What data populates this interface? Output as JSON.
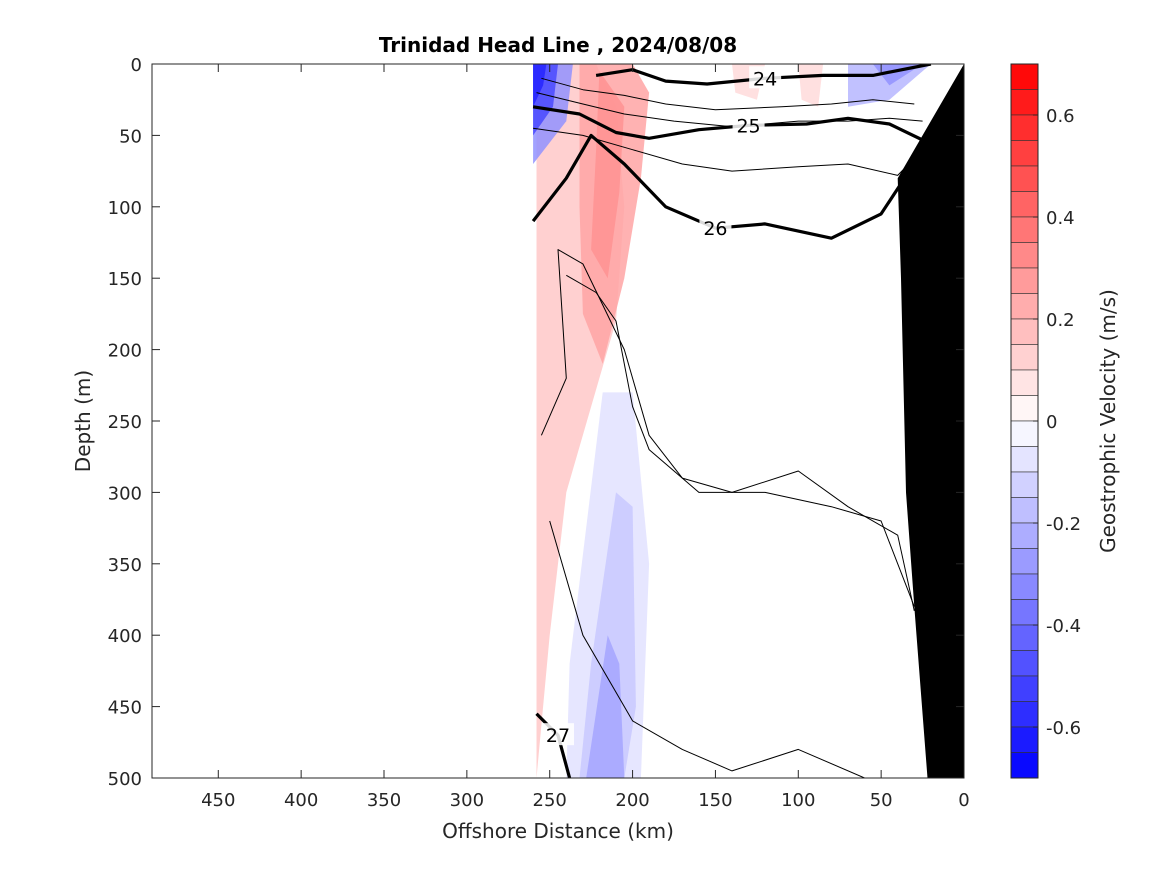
{
  "chart_data": {
    "type": "heatmap",
    "title": "Trinidad Head Line , 2024/08/08",
    "xlabel": "Offshore Distance (km)",
    "ylabel": "Depth (m)",
    "xlim": [
      490,
      0
    ],
    "ylim": [
      0,
      500
    ],
    "x_reversed": true,
    "y_reversed": true,
    "x_ticks": [
      450,
      400,
      350,
      300,
      250,
      200,
      150,
      100,
      50,
      0
    ],
    "y_ticks": [
      0,
      50,
      100,
      150,
      200,
      250,
      300,
      350,
      400,
      450,
      500
    ],
    "colorbar": {
      "label": "Geostrophic Velocity (m/s)",
      "range": [
        -0.7,
        0.7
      ],
      "step": 0.05,
      "ticks": [
        0.6,
        0.4,
        0.2,
        0,
        -0.2,
        -0.4,
        -0.6
      ],
      "positive_color": "#ff0000",
      "negative_color": "#0000ff"
    },
    "data_extent_km": 260,
    "velocity_regions": [
      {
        "v": 0.15,
        "points": [
          [
            258,
            0
          ],
          [
            222,
            0
          ],
          [
            210,
            30
          ],
          [
            205,
            100
          ],
          [
            210,
            180
          ],
          [
            225,
            240
          ],
          [
            240,
            300
          ],
          [
            250,
            400
          ],
          [
            258,
            500
          ]
        ]
      },
      {
        "v": 0.25,
        "points": [
          [
            232,
            0
          ],
          [
            200,
            0
          ],
          [
            190,
            20
          ],
          [
            195,
            80
          ],
          [
            205,
            150
          ],
          [
            218,
            210
          ],
          [
            230,
            175
          ],
          [
            232,
            100
          ]
        ]
      },
      {
        "v": 0.3,
        "points": [
          [
            220,
            5
          ],
          [
            205,
            30
          ],
          [
            208,
            90
          ],
          [
            215,
            150
          ],
          [
            225,
            130
          ],
          [
            222,
            60
          ]
        ]
      },
      {
        "v": 0.1,
        "points": [
          [
            100,
            0
          ],
          [
            85,
            0
          ],
          [
            88,
            30
          ],
          [
            98,
            25
          ]
        ]
      },
      {
        "v": 0.1,
        "points": [
          [
            140,
            0
          ],
          [
            120,
            0
          ],
          [
            125,
            25
          ],
          [
            138,
            20
          ]
        ]
      },
      {
        "v": -0.08,
        "points": [
          [
            218,
            230
          ],
          [
            200,
            230
          ],
          [
            190,
            350
          ],
          [
            195,
            500
          ],
          [
            240,
            500
          ],
          [
            238,
            420
          ]
        ]
      },
      {
        "v": -0.15,
        "points": [
          [
            210,
            300
          ],
          [
            200,
            310
          ],
          [
            198,
            450
          ],
          [
            205,
            500
          ],
          [
            232,
            500
          ],
          [
            225,
            420
          ]
        ]
      },
      {
        "v": -0.25,
        "points": [
          [
            215,
            400
          ],
          [
            208,
            420
          ],
          [
            205,
            500
          ],
          [
            228,
            500
          ]
        ]
      },
      {
        "v": -0.2,
        "points": [
          [
            70,
            0
          ],
          [
            20,
            0
          ],
          [
            45,
            25
          ],
          [
            70,
            30
          ]
        ]
      },
      {
        "v": -0.3,
        "points": [
          [
            55,
            0
          ],
          [
            25,
            0
          ],
          [
            45,
            15
          ]
        ]
      },
      {
        "v": -0.3,
        "points": [
          [
            260,
            0
          ],
          [
            236,
            0
          ],
          [
            240,
            40
          ],
          [
            260,
            70
          ]
        ]
      },
      {
        "v": -0.5,
        "points": [
          [
            260,
            0
          ],
          [
            245,
            0
          ],
          [
            248,
            30
          ],
          [
            260,
            50
          ]
        ]
      },
      {
        "v": -0.6,
        "points": [
          [
            260,
            0
          ],
          [
            252,
            0
          ],
          [
            254,
            15
          ],
          [
            260,
            30
          ]
        ]
      }
    ],
    "isopycnals": [
      {
        "label": "24",
        "major": true,
        "points": [
          [
            222,
            8
          ],
          [
            200,
            4
          ],
          [
            180,
            12
          ],
          [
            155,
            14
          ],
          [
            120,
            10
          ],
          [
            85,
            8
          ],
          [
            55,
            8
          ],
          [
            20,
            0
          ]
        ]
      },
      {
        "label": "",
        "major": false,
        "points": [
          [
            255,
            10
          ],
          [
            230,
            18
          ],
          [
            205,
            22
          ],
          [
            180,
            28
          ],
          [
            150,
            32
          ],
          [
            110,
            30
          ],
          [
            80,
            28
          ],
          [
            55,
            25
          ],
          [
            30,
            28
          ]
        ]
      },
      {
        "label": "",
        "major": false,
        "points": [
          [
            258,
            20
          ],
          [
            230,
            28
          ],
          [
            205,
            35
          ],
          [
            175,
            40
          ],
          [
            140,
            44
          ],
          [
            100,
            40
          ],
          [
            70,
            40
          ],
          [
            45,
            38
          ],
          [
            25,
            40
          ]
        ]
      },
      {
        "label": "25",
        "major": true,
        "points": [
          [
            260,
            30
          ],
          [
            232,
            35
          ],
          [
            210,
            48
          ],
          [
            190,
            52
          ],
          [
            160,
            46
          ],
          [
            130,
            43
          ],
          [
            95,
            42
          ],
          [
            70,
            38
          ],
          [
            45,
            42
          ],
          [
            20,
            56
          ]
        ]
      },
      {
        "label": "",
        "major": false,
        "points": [
          [
            260,
            45
          ],
          [
            230,
            50
          ],
          [
            200,
            60
          ],
          [
            170,
            70
          ],
          [
            140,
            75
          ],
          [
            100,
            72
          ],
          [
            70,
            70
          ],
          [
            40,
            78
          ],
          [
            25,
            60
          ]
        ]
      },
      {
        "label": "26",
        "major": true,
        "points": [
          [
            260,
            110
          ],
          [
            240,
            80
          ],
          [
            225,
            50
          ],
          [
            205,
            70
          ],
          [
            180,
            100
          ],
          [
            150,
            115
          ],
          [
            120,
            112
          ],
          [
            80,
            122
          ],
          [
            50,
            105
          ],
          [
            20,
            52
          ]
        ]
      },
      {
        "label": "",
        "major": false,
        "points": [
          [
            255,
            260
          ],
          [
            240,
            220
          ],
          [
            245,
            130
          ],
          [
            230,
            140
          ],
          [
            205,
            200
          ],
          [
            190,
            260
          ],
          [
            170,
            290
          ],
          [
            140,
            300
          ],
          [
            100,
            285
          ],
          [
            70,
            310
          ],
          [
            40,
            330
          ],
          [
            30,
            383
          ]
        ]
      },
      {
        "label": "",
        "major": false,
        "points": [
          [
            240,
            148
          ],
          [
            222,
            160
          ],
          [
            210,
            180
          ],
          [
            200,
            240
          ],
          [
            190,
            270
          ],
          [
            160,
            300
          ],
          [
            120,
            300
          ],
          [
            80,
            310
          ],
          [
            50,
            320
          ],
          [
            30,
            380
          ]
        ]
      },
      {
        "label": "27",
        "major": true,
        "points": [
          [
            258,
            455
          ],
          [
            245,
            470
          ],
          [
            238,
            500
          ]
        ]
      },
      {
        "label": "",
        "major": false,
        "points": [
          [
            250,
            320
          ],
          [
            230,
            400
          ],
          [
            200,
            460
          ],
          [
            170,
            480
          ],
          [
            140,
            495
          ],
          [
            100,
            480
          ],
          [
            60,
            500
          ],
          [
            40,
            500
          ]
        ]
      }
    ],
    "bottom_topography": [
      [
        22,
        500
      ],
      [
        30,
        380
      ],
      [
        35,
        300
      ],
      [
        38,
        150
      ],
      [
        40,
        80
      ],
      [
        0,
        0
      ],
      [
        0,
        500
      ]
    ]
  }
}
